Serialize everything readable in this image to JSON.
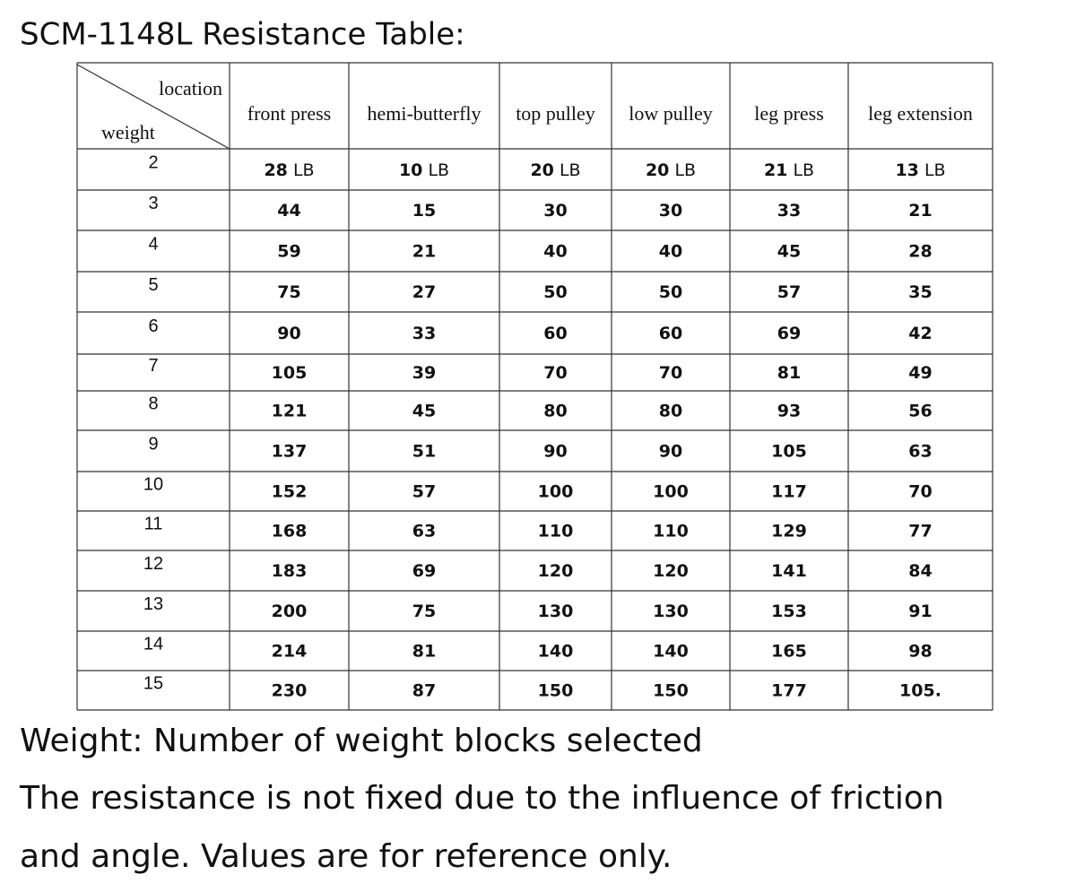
{
  "header": {
    "title": "SCM-1148L Resistance Table:"
  },
  "table": {
    "corner": {
      "top": "location",
      "bottom": "weight"
    },
    "columns": [
      "front press",
      "hemi-butterfly",
      "top pulley",
      "low pulley",
      "leg press",
      "leg extension"
    ],
    "rows": [
      {
        "weight": "2",
        "cells": [
          {
            "value": "28",
            "unit": "LB"
          },
          {
            "value": "10",
            "unit": "LB"
          },
          {
            "value": "20",
            "unit": "LB"
          },
          {
            "value": "20",
            "unit": "LB"
          },
          {
            "value": "21",
            "unit": "LB"
          },
          {
            "value": "13",
            "unit": "LB"
          }
        ]
      },
      {
        "weight": "3",
        "cells": [
          "44",
          "15",
          "30",
          "30",
          "33",
          "21"
        ]
      },
      {
        "weight": "4",
        "cells": [
          "59",
          "21",
          "40",
          "40",
          "45",
          "28"
        ]
      },
      {
        "weight": "5",
        "cells": [
          "75",
          "27",
          "50",
          "50",
          "57",
          "35"
        ]
      },
      {
        "weight": "6",
        "cells": [
          "90",
          "33",
          "60",
          "60",
          "69",
          "42"
        ]
      },
      {
        "weight": "7",
        "cells": [
          "105",
          "39",
          "70",
          "70",
          "81",
          "49"
        ]
      },
      {
        "weight": "8",
        "cells": [
          "121",
          "45",
          "80",
          "80",
          "93",
          "56"
        ]
      },
      {
        "weight": "9",
        "cells": [
          "137",
          "51",
          "90",
          "90",
          "105",
          "63"
        ]
      },
      {
        "weight": "10",
        "cells": [
          "152",
          "57",
          "100",
          "100",
          "117",
          "70"
        ]
      },
      {
        "weight": "11",
        "cells": [
          "168",
          "63",
          "110",
          "110",
          "129",
          "77"
        ]
      },
      {
        "weight": "12",
        "cells": [
          "183",
          "69",
          "120",
          "120",
          "141",
          "84"
        ]
      },
      {
        "weight": "13",
        "cells": [
          "200",
          "75",
          "130",
          "130",
          "153",
          "91"
        ]
      },
      {
        "weight": "14",
        "cells": [
          "214",
          "81",
          "140",
          "140",
          "165",
          "98"
        ]
      },
      {
        "weight": "15",
        "cells": [
          "230",
          "87",
          "150",
          "150",
          "177",
          "105."
        ]
      }
    ]
  },
  "footer": {
    "lines": [
      "Weight: Number of weight blocks selected",
      "The resistance is not fixed due to the influence of friction",
      "and angle. Values are for reference only."
    ]
  }
}
